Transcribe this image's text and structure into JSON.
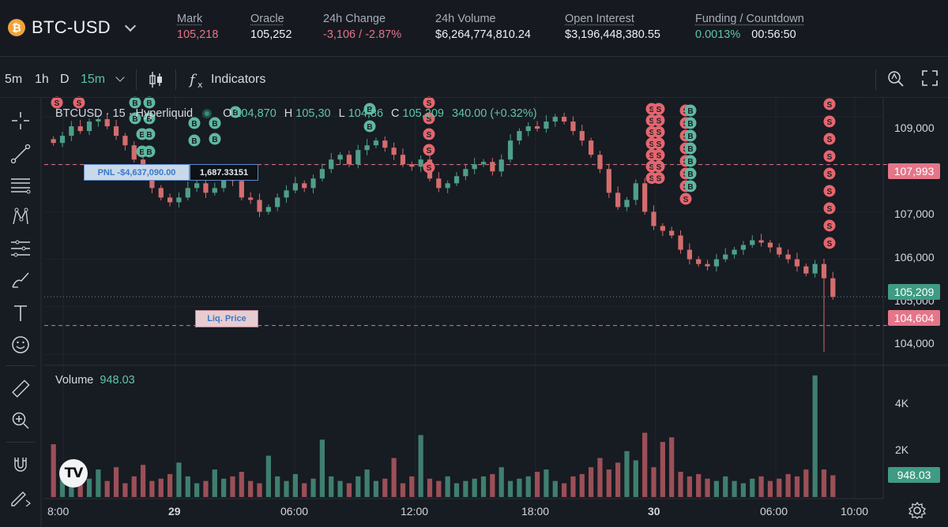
{
  "header": {
    "pair": "BTC-USD",
    "logo_glyph": "₿",
    "stats": [
      {
        "label": "Mark",
        "value": "105,218",
        "tone": "pink"
      },
      {
        "label": "Oracle",
        "value": "105,252",
        "tone": "normal"
      },
      {
        "label": "24h Change",
        "value": "-3,106 / -2.87%",
        "tone": "pink"
      },
      {
        "label": "24h Volume",
        "value": "$6,264,774,810.24",
        "tone": "normal"
      },
      {
        "label": "Open Interest",
        "value": "$3,196,448,380.55",
        "tone": "normal"
      },
      {
        "label": "Funding / Countdown",
        "value": "0.0013%",
        "value2": "00:56:50",
        "tone": "green"
      }
    ]
  },
  "toolbar": {
    "timeframes": [
      "5m",
      "1h",
      "D"
    ],
    "active_timeframe": "15m",
    "indicators_label": "Indicators",
    "icons": [
      "candles-icon",
      "fx-icon",
      "zoom-hand-icon",
      "fullscreen-icon"
    ]
  },
  "left_tools": [
    "crosshair-icon",
    "trendline-icon",
    "fib-icon",
    "pattern-icon",
    "forecast-icon",
    "brush-icon",
    "text-icon",
    "emoji-icon",
    "ruler-icon",
    "zoom-in-icon",
    "magnet-icon",
    "lock-pencil-icon"
  ],
  "chart": {
    "legend": {
      "symbol": "BTCUSD · 15 · Hyperliquid",
      "o_label": "O",
      "o": "104,870",
      "h_label": "H",
      "h": "105,30",
      "l_label": "L",
      "l": "104,86",
      "c_label": "C",
      "c": "105,209",
      "change": "340.00 (+0.32%)"
    },
    "volume_label": "Volume",
    "volume_value": "948.03",
    "pnl_label": "PNL -$4,637,090.00",
    "position_size": "1,687.33151",
    "liq_label": "Liq. Price",
    "price_axis": [
      "109,000",
      "107,000",
      "106,000",
      "105,000",
      "104,000"
    ],
    "price_tags": {
      "entry": "107,993",
      "last": "105,209",
      "liq": "104,604",
      "volume": "948.03"
    },
    "volume_axis": [
      "4K",
      "2K"
    ],
    "time_axis": [
      "8:00",
      "29",
      "06:00",
      "12:00",
      "18:00",
      "30",
      "06:00",
      "10:00"
    ],
    "tv_logo": "TV",
    "marker_buy": "B",
    "marker_sell": "S",
    "colors": {
      "up": "#4e9f8a",
      "down": "#d46d6d",
      "bg": "#171b22",
      "accent": "#56c3a8"
    }
  },
  "chart_data": {
    "type": "candlestick",
    "price_close_series": [
      108450,
      108600,
      108800,
      108700,
      108900,
      108950,
      108800,
      108600,
      108400,
      108100,
      107800,
      107500,
      107300,
      107200,
      107300,
      107500,
      107600,
      107400,
      107500,
      107800,
      107650,
      107300,
      107250,
      107000,
      107100,
      107300,
      107450,
      107600,
      107500,
      107700,
      107900,
      108100,
      108200,
      108000,
      108300,
      108400,
      108500,
      108350,
      108200,
      108000,
      107950,
      108100,
      107700,
      107500,
      107600,
      107750,
      107900,
      108000,
      108050,
      107850,
      108100,
      108500,
      108700,
      108800,
      108750,
      108900,
      109000,
      108900,
      108700,
      108500,
      108200,
      107900,
      107400,
      107100,
      107250,
      107600,
      107000,
      106700,
      106600,
      106500,
      106200,
      106000,
      105900,
      105850,
      106000,
      106100,
      106200,
      106300,
      106400,
      106350,
      106250,
      106100,
      106000,
      105850,
      105700,
      105900,
      105600,
      105209
    ],
    "volume_series": [
      2300,
      900,
      700,
      1100,
      800,
      1200,
      700,
      1300,
      600,
      900,
      1400,
      700,
      800,
      1000,
      1500,
      900,
      600,
      700,
      1200,
      800,
      900,
      1100,
      700,
      600,
      1800,
      900,
      700,
      1000,
      600,
      800,
      2500,
      900,
      700,
      600,
      900,
      1200,
      700,
      800,
      1700,
      600,
      900,
      2700,
      800,
      700,
      900,
      600,
      700,
      800,
      900,
      1000,
      1300,
      700,
      800,
      900,
      1100,
      1200,
      700,
      600,
      900,
      1000,
      1300,
      1700,
      1200,
      1500,
      2000,
      1600,
      2800,
      1300,
      2400,
      2600,
      1100,
      900,
      1000,
      800,
      700,
      900,
      700,
      600,
      800,
      900,
      700,
      800,
      1000,
      900,
      1200,
      5300,
      1200,
      948
    ],
    "price_ylim": [
      103900,
      109300
    ],
    "volume_ylim": [
      0,
      5500
    ],
    "last": 105209,
    "entry_price": 107993,
    "liquidation_price": 104604,
    "xlabels": [
      "8:00",
      "29",
      "06:00",
      "12:00",
      "18:00",
      "30",
      "06:00",
      "10:00"
    ]
  }
}
